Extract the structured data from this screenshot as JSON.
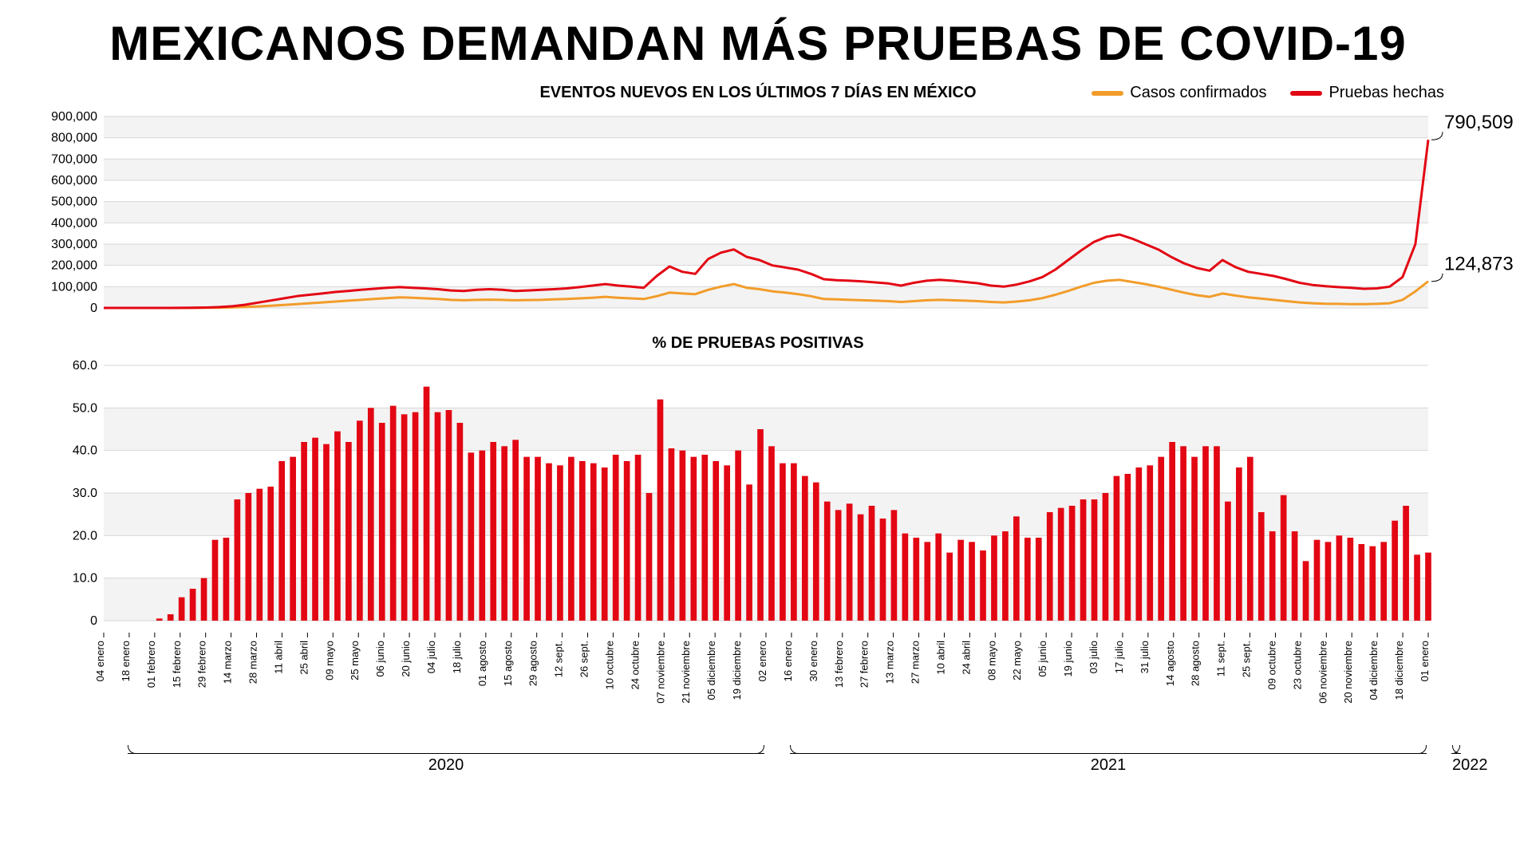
{
  "title": "MEXICANOS DEMANDAN MÁS PRUEBAS DE COVID-19",
  "title_fontsize": 60,
  "line_chart": {
    "subtitle": "EVENTOS NUEVOS EN LOS ÚLTIMOS 7 DÍAS EN MÉXICO",
    "subtitle_fontsize": 20,
    "legend": [
      {
        "label": "Casos confirmados",
        "color": "#f29c2a"
      },
      {
        "label": "Pruebas hechas",
        "color": "#e30613"
      }
    ],
    "ylim": [
      0,
      900000
    ],
    "ytick_step": 100000,
    "yticks": [
      "0",
      "100,000",
      "200,000",
      "300,000",
      "400,000",
      "500,000",
      "600,000",
      "700,000",
      "800,000",
      "900,000"
    ],
    "grid_color": "#d6d6d6",
    "alt_band_color": "#f3f3f3",
    "background_color": "#ffffff",
    "line_width": 3,
    "callouts": [
      {
        "label": "790,509",
        "series": "tests",
        "value": 790509
      },
      {
        "label": "124,873",
        "series": "cases",
        "value": 124873
      }
    ],
    "series": {
      "tests_color": "#e30613",
      "cases_color": "#f29c2a",
      "tests": [
        0,
        0,
        0,
        0,
        0,
        0,
        500,
        1000,
        2000,
        4000,
        8000,
        15000,
        25000,
        35000,
        45000,
        55000,
        62000,
        68000,
        75000,
        80000,
        85000,
        90000,
        95000,
        98000,
        95000,
        92000,
        88000,
        82000,
        80000,
        85000,
        88000,
        85000,
        80000,
        82000,
        85000,
        88000,
        92000,
        98000,
        105000,
        112000,
        105000,
        100000,
        95000,
        150000,
        195000,
        170000,
        160000,
        230000,
        260000,
        275000,
        240000,
        225000,
        200000,
        190000,
        180000,
        160000,
        135000,
        130000,
        128000,
        125000,
        120000,
        115000,
        105000,
        118000,
        128000,
        132000,
        128000,
        122000,
        116000,
        105000,
        100000,
        110000,
        125000,
        145000,
        180000,
        225000,
        270000,
        310000,
        335000,
        345000,
        325000,
        300000,
        275000,
        240000,
        210000,
        188000,
        175000,
        225000,
        192000,
        170000,
        160000,
        150000,
        135000,
        118000,
        108000,
        102000,
        98000,
        95000,
        90000,
        92000,
        100000,
        145000,
        300000,
        790509
      ],
      "cases": [
        0,
        0,
        0,
        0,
        0,
        0,
        100,
        300,
        600,
        1200,
        2500,
        4500,
        7000,
        10000,
        14000,
        18000,
        22000,
        26000,
        30000,
        34000,
        38000,
        42000,
        46000,
        50000,
        48000,
        45000,
        42000,
        38000,
        36000,
        38000,
        39000,
        38000,
        36000,
        37000,
        38000,
        40000,
        42000,
        45000,
        48000,
        52000,
        48000,
        45000,
        42000,
        55000,
        72000,
        68000,
        65000,
        85000,
        100000,
        112000,
        95000,
        88000,
        78000,
        72000,
        65000,
        55000,
        42000,
        40000,
        38000,
        36000,
        34000,
        32000,
        28000,
        32000,
        36000,
        38000,
        36000,
        34000,
        32000,
        28000,
        26000,
        30000,
        36000,
        46000,
        62000,
        80000,
        100000,
        118000,
        128000,
        132000,
        122000,
        112000,
        100000,
        86000,
        72000,
        60000,
        52000,
        68000,
        58000,
        50000,
        44000,
        38000,
        32000,
        26000,
        22000,
        20000,
        19000,
        18000,
        18000,
        19000,
        22000,
        38000,
        78000,
        124873
      ]
    }
  },
  "bar_chart": {
    "subtitle": "% DE PRUEBAS POSITIVAS",
    "subtitle_fontsize": 20,
    "ylim": [
      0,
      60
    ],
    "ytick_step": 10,
    "yticks": [
      "0",
      "10.0",
      "20.0",
      "30.0",
      "40.0",
      "50.0",
      "60.0"
    ],
    "bar_color": "#e30613",
    "grid_color": "#d6d6d6",
    "alt_band_color": "#f3f3f3",
    "background_color": "#ffffff",
    "values": [
      0,
      0,
      0,
      0,
      0,
      0.5,
      1.5,
      5.5,
      7.5,
      10.0,
      19.0,
      19.5,
      28.5,
      30.0,
      31.0,
      31.5,
      37.5,
      38.5,
      42.0,
      43.0,
      41.5,
      44.5,
      42.0,
      47.0,
      50.0,
      46.5,
      50.5,
      48.5,
      49.0,
      55.0,
      49.0,
      49.5,
      46.5,
      39.5,
      40.0,
      42.0,
      41.0,
      42.5,
      38.5,
      38.5,
      37.0,
      36.5,
      38.5,
      37.5,
      37.0,
      36.0,
      39.0,
      37.5,
      39.0,
      30.0,
      52.0,
      40.5,
      40.0,
      38.5,
      39.0,
      37.5,
      36.5,
      40.0,
      32.0,
      45.0,
      41.0,
      37.0,
      37.0,
      34.0,
      32.5,
      28.0,
      26.0,
      27.5,
      25.0,
      27.0,
      24.0,
      26.0,
      20.5,
      19.5,
      18.5,
      20.5,
      16.0,
      19.0,
      18.5,
      16.5,
      20.0,
      21.0,
      24.5,
      19.5,
      19.5,
      25.5,
      26.5,
      27.0,
      28.5,
      28.5,
      30.0,
      34.0,
      34.5,
      36.0,
      36.5,
      38.5,
      42.0,
      41.0,
      38.5,
      41.0,
      41.0,
      28.0,
      36.0,
      38.5,
      25.5,
      21.0,
      29.5,
      21.0,
      14.0,
      19.0,
      18.5,
      20.0,
      19.5,
      18.0,
      17.5,
      18.5,
      23.5,
      27.0,
      15.5,
      16.0
    ]
  },
  "xaxis": {
    "labels": [
      "04 enero",
      "18 enero",
      "01 febrero",
      "15 febrero",
      "29 febrero",
      "14 marzo",
      "28 marzo",
      "11 abril",
      "25 abril",
      "09 mayo",
      "25 mayo",
      "06 junio",
      "20 junio",
      "04 julio",
      "18 julio",
      "01 agosto",
      "15 agosto",
      "29 agosto",
      "12 sept.",
      "26 sept.",
      "10 octubre",
      "24 octubre",
      "07 noviembre",
      "21 noviembre",
      "05 diciembre",
      "19 diciembre",
      "02 enero",
      "16 enero",
      "30 enero",
      "13 febrero",
      "27 febrero",
      "13 marzo",
      "27 marzo",
      "10 abril",
      "24 abril",
      "08 mayo",
      "22 mayo",
      "05 junio",
      "19 junio",
      "03 julio",
      "17 julio",
      "31 julio",
      "14 agosto",
      "28 agosto",
      "11 sept.",
      "25 sept.",
      "09 octubre",
      "23 octubre",
      "06 noviembre",
      "20 noviembre",
      "04 diciembre",
      "18 diciembre",
      "01 enero"
    ],
    "label_fontsize": 13,
    "year_groups": [
      {
        "label": "2020",
        "start": 0,
        "end": 25
      },
      {
        "label": "2021",
        "start": 26,
        "end": 51
      },
      {
        "label": "2022",
        "start": 52,
        "end": 52
      }
    ]
  }
}
